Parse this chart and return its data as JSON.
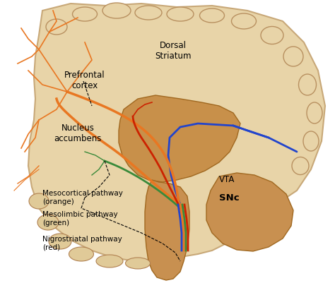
{
  "bg_color": "#ffffff",
  "brain_color": "#e8d5b0",
  "brain_outline_color": "#b8975a",
  "inner_color": "#c4935a",
  "labels": {
    "prefrontal_cortex": "Prefrontal\ncortex",
    "dorsal_striatum": "Dorsal\nStriatum",
    "nucleus_accumbens": "Nucleus\naccumbens",
    "mesocortical": "Mesocortical pathway\n(orange)",
    "mesolimbic": "Mesolimbic pathway\n(green)",
    "nigrostriatal": "Nigrostriatal pathway\n(red)",
    "VTA": "VTA",
    "SNc": "SNc"
  },
  "pathway_colors": {
    "orange": "#e87722",
    "green": "#3a8a3a",
    "red": "#cc2200",
    "blue": "#2244cc"
  },
  "figsize": [
    4.74,
    4.01
  ],
  "dpi": 100
}
